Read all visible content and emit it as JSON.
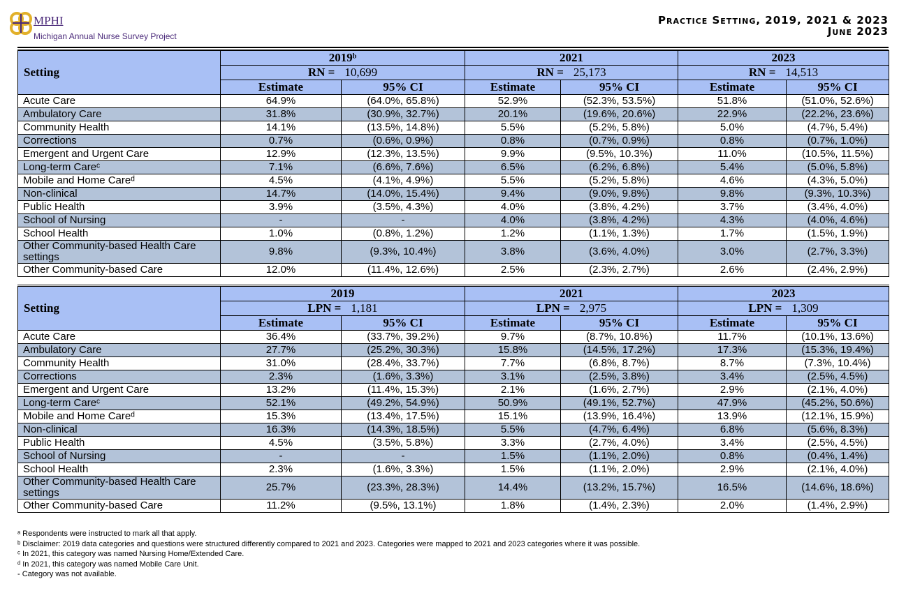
{
  "header": {
    "logo_abbr": "MPHI",
    "logo_subtitle": "Michigan Annual Nurse Survey Project",
    "title": "Practice Setting, 2019, 2021 & 2023",
    "date": "June 2023"
  },
  "sections": [
    {
      "setting_label": "Setting",
      "years": [
        {
          "year": "2019ᵇ",
          "count_label": "RN =",
          "count": "10,699",
          "estimate_label": "Estimate",
          "ci_label": "95% CI"
        },
        {
          "year": "2021",
          "count_label": "RN =",
          "count": "25,173",
          "estimate_label": "Estimate",
          "ci_label": "95% CI"
        },
        {
          "year": "2023",
          "count_label": "RN =",
          "count": "14,513",
          "estimate_label": "Estimate",
          "ci_label": "95% CI"
        }
      ],
      "rows": [
        [
          "Acute Care",
          "64.9%",
          "(64.0%, 65.8%)",
          "52.9%",
          "(52.3%, 53.5%)",
          "51.8%",
          "(51.0%, 52.6%)"
        ],
        [
          "Ambulatory Care",
          "31.8%",
          "(30.9%, 32.7%)",
          "20.1%",
          "(19.6%, 20.6%)",
          "22.9%",
          "(22.2%, 23.6%)"
        ],
        [
          "Community Health",
          "14.1%",
          "(13.5%, 14.8%)",
          "5.5%",
          "(5.2%, 5.8%)",
          "5.0%",
          "(4.7%, 5.4%)"
        ],
        [
          "Corrections",
          "0.7%",
          "(0.6%, 0.9%)",
          "0.8%",
          "(0.7%, 0.9%)",
          "0.8%",
          "(0.7%, 1.0%)"
        ],
        [
          "Emergent and Urgent Care",
          "12.9%",
          "(12.3%, 13.5%)",
          "9.9%",
          "(9.5%, 10.3%)",
          "11.0%",
          "(10.5%, 11.5%)"
        ],
        [
          "Long-term Careᶜ",
          "7.1%",
          "(6.6%, 7.6%)",
          "6.5%",
          "(6.2%, 6.8%)",
          "5.4%",
          "(5.0%, 5.8%)"
        ],
        [
          "Mobile and Home Careᵈ",
          "4.5%",
          "(4.1%, 4.9%)",
          "5.5%",
          "(5.2%, 5.8%)",
          "4.6%",
          "(4.3%, 5.0%)"
        ],
        [
          "Non-clinical",
          "14.7%",
          "(14.0%, 15.4%)",
          "9.4%",
          "(9.0%, 9.8%)",
          "9.8%",
          "(9.3%, 10.3%)"
        ],
        [
          "Public Health",
          "3.9%",
          "(3.5%, 4.3%)",
          "4.0%",
          "(3.8%, 4.2%)",
          "3.7%",
          "(3.4%, 4.0%)"
        ],
        [
          "School of Nursing",
          "-",
          "-",
          "4.0%",
          "(3.8%, 4.2%)",
          "4.3%",
          "(4.0%, 4.6%)"
        ],
        [
          "School Health",
          "1.0%",
          "(0.8%, 1.2%)",
          "1.2%",
          "(1.1%, 1.3%)",
          "1.7%",
          "(1.5%, 1.9%)"
        ],
        [
          "Other Community-based Health Care settings",
          "9.8%",
          "(9.3%, 10.4%)",
          "3.8%",
          "(3.6%, 4.0%)",
          "3.0%",
          "(2.7%, 3.3%)"
        ],
        [
          "Other Community-based Care",
          "12.0%",
          "(11.4%, 12.6%)",
          "2.5%",
          "(2.3%, 2.7%)",
          "2.6%",
          "(2.4%, 2.9%)"
        ]
      ]
    },
    {
      "setting_label": "Setting",
      "years": [
        {
          "year": "2019",
          "count_label": "LPN =",
          "count": "1,181",
          "estimate_label": "Estimate",
          "ci_label": "95% CI"
        },
        {
          "year": "2021",
          "count_label": "LPN =",
          "count": "2,975",
          "estimate_label": "Estimate",
          "ci_label": "95% CI"
        },
        {
          "year": "2023",
          "count_label": "LPN =",
          "count": "1,309",
          "estimate_label": "Estimate",
          "ci_label": "95% CI"
        }
      ],
      "rows": [
        [
          "Acute Care",
          "36.4%",
          "(33.7%, 39.2%)",
          "9.7%",
          "(8.7%, 10.8%)",
          "11.7%",
          "(10.1%, 13.6%)"
        ],
        [
          "Ambulatory Care",
          "27.7%",
          "(25.2%, 30.3%)",
          "15.8%",
          "(14.5%, 17.2%)",
          "17.3%",
          "(15.3%, 19.4%)"
        ],
        [
          "Community Health",
          "31.0%",
          "(28.4%, 33.7%)",
          "7.7%",
          "(6.8%, 8.7%)",
          "8.7%",
          "(7.3%, 10.4%)"
        ],
        [
          "Corrections",
          "2.3%",
          "(1.6%, 3.3%)",
          "3.1%",
          "(2.5%, 3.8%)",
          "3.4%",
          "(2.5%, 4.5%)"
        ],
        [
          "Emergent and Urgent Care",
          "13.2%",
          "(11.4%, 15.3%)",
          "2.1%",
          "(1.6%, 2.7%)",
          "2.9%",
          "(2.1%, 4.0%)"
        ],
        [
          "Long-term Careᶜ",
          "52.1%",
          "(49.2%, 54.9%)",
          "50.9%",
          "(49.1%, 52.7%)",
          "47.9%",
          "(45.2%, 50.6%)"
        ],
        [
          "Mobile and Home Careᵈ",
          "15.3%",
          "(13.4%, 17.5%)",
          "15.1%",
          "(13.9%, 16.4%)",
          "13.9%",
          "(12.1%, 15.9%)"
        ],
        [
          "Non-clinical",
          "16.3%",
          "(14.3%, 18.5%)",
          "5.5%",
          "(4.7%, 6.4%)",
          "6.8%",
          "(5.6%, 8.3%)"
        ],
        [
          "Public Health",
          "4.5%",
          "(3.5%, 5.8%)",
          "3.3%",
          "(2.7%, 4.0%)",
          "3.4%",
          "(2.5%, 4.5%)"
        ],
        [
          "School of Nursing",
          "-",
          "-",
          "1.5%",
          "(1.1%, 2.0%)",
          "0.8%",
          "(0.4%, 1.4%)"
        ],
        [
          "School Health",
          "2.3%",
          "(1.6%, 3.3%)",
          "1.5%",
          "(1.1%, 2.0%)",
          "2.9%",
          "(2.1%, 4.0%)"
        ],
        [
          "Other Community-based Health Care settings",
          "25.7%",
          "(23.3%, 28.3%)",
          "14.4%",
          "(13.2%, 15.7%)",
          "16.5%",
          "(14.6%, 18.6%)"
        ],
        [
          "Other Community-based Care",
          "11.2%",
          "(9.5%, 13.1%)",
          "1.8%",
          "(1.4%, 2.3%)",
          "2.0%",
          "(1.4%, 2.9%)"
        ]
      ]
    }
  ],
  "footnotes": [
    "ᵃ Respondents were instructed to mark all that apply.",
    "ᵇ Disclaimer: 2019 data categories and questions were structured differently compared to 2021 and 2023. Categories were mapped to 2021 and 2023 categories where it was possible.",
    "ᶜ In 2021, this category was named Nursing Home/Extended Care.",
    "ᵈ In 2021, this category was named Mobile Care Unit.",
    "- Category was not available."
  ]
}
